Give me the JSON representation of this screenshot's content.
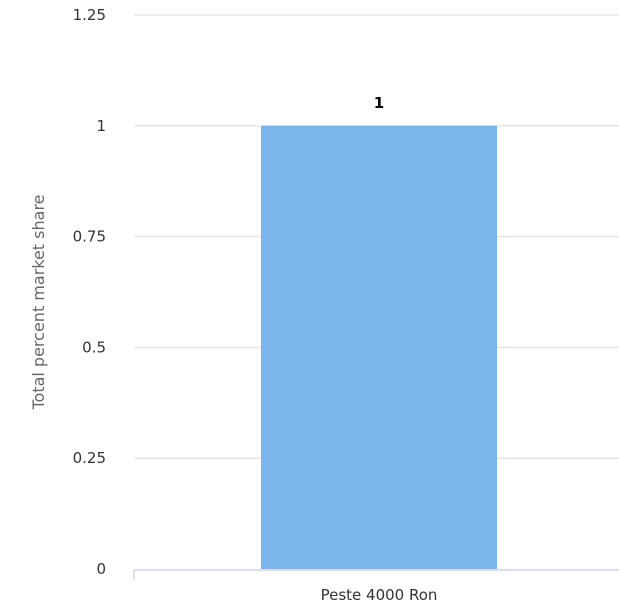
{
  "chart_data": {
    "type": "bar",
    "categories": [
      "Peste 4000 Ron"
    ],
    "values": [
      1
    ],
    "data_labels": [
      "1"
    ],
    "title": "",
    "xlabel": "",
    "ylabel": "Total percent market share",
    "ylim": [
      0,
      1.25
    ],
    "yticks": [
      0,
      0.25,
      0.5,
      0.75,
      1,
      1.25
    ],
    "ytick_labels": [
      "0",
      "0.25",
      "0.5",
      "0.75",
      "1",
      "1.25"
    ],
    "grid": true,
    "legend": "none",
    "bar_color": "#7cb5ec"
  }
}
